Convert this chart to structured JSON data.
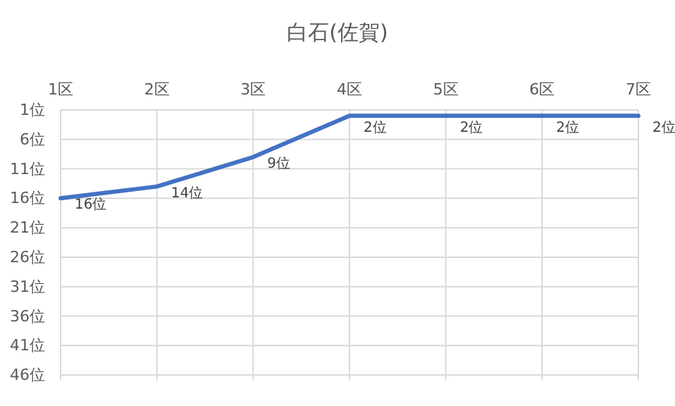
{
  "chart_data": {
    "type": "line",
    "title": "白石(佐賀)",
    "categories": [
      "1区",
      "2区",
      "3区",
      "4区",
      "5区",
      "6区",
      "7区"
    ],
    "series": [
      {
        "color": "#4472c4",
        "values": [
          16,
          14,
          9,
          2,
          2,
          2,
          2
        ],
        "value_labels": [
          "16位",
          "14位",
          "9位",
          "2位",
          "2位",
          "2位",
          "2位"
        ]
      }
    ],
    "ylim": [
      46,
      1
    ],
    "yticks": [
      {
        "value": 1,
        "label": "1位"
      },
      {
        "value": 6,
        "label": "6位"
      },
      {
        "value": 11,
        "label": "11位"
      },
      {
        "value": 16,
        "label": "16位"
      },
      {
        "value": 21,
        "label": "21位"
      },
      {
        "value": 26,
        "label": "26位"
      },
      {
        "value": 31,
        "label": "31位"
      },
      {
        "value": 36,
        "label": "36位"
      },
      {
        "value": 41,
        "label": "41位"
      },
      {
        "value": 46,
        "label": "46位"
      }
    ],
    "grid": true,
    "marker": "none",
    "line_style": "solid"
  }
}
